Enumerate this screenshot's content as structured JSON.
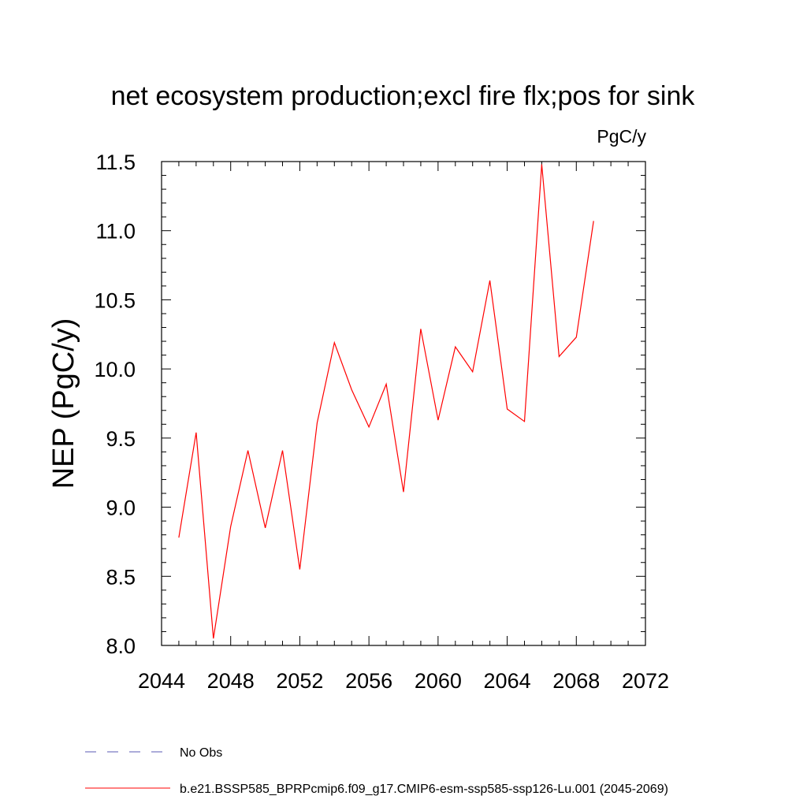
{
  "chart_data": {
    "type": "line",
    "title": "net ecosystem production;excl fire flx;pos for sink",
    "units": "PgC/y",
    "ylabel": "NEP  (PgC/y)",
    "xlabel": "",
    "xlim": [
      2044,
      2072
    ],
    "ylim": [
      8.0,
      11.5
    ],
    "x_ticks": [
      "2044",
      "2048",
      "2052",
      "2056",
      "2060",
      "2064",
      "2068",
      "2072"
    ],
    "y_ticks": [
      "8.0",
      "8.5",
      "9.0",
      "9.5",
      "10.0",
      "10.5",
      "11.0",
      "11.5"
    ],
    "grid": false,
    "series": [
      {
        "name": "b.e21.BSSP585_BPRPcmip6.f09_g17.CMIP6-esm-ssp585-ssp126-Lu.001 (2045-2069)",
        "color": "#ff0000",
        "x": [
          2045,
          2046,
          2047,
          2048,
          2049,
          2050,
          2051,
          2052,
          2053,
          2054,
          2055,
          2056,
          2057,
          2058,
          2059,
          2060,
          2061,
          2062,
          2063,
          2064,
          2065,
          2066,
          2067,
          2068,
          2069
        ],
        "values": [
          8.78,
          9.54,
          8.05,
          8.86,
          9.41,
          8.85,
          9.41,
          8.55,
          9.61,
          10.19,
          9.85,
          9.58,
          9.89,
          9.11,
          10.29,
          9.63,
          10.16,
          9.98,
          10.64,
          9.71,
          9.62,
          11.48,
          10.09,
          10.23,
          11.07
        ]
      }
    ],
    "legend": [
      {
        "label": "No Obs",
        "color": "#5a5ab4",
        "style": "dashed"
      },
      {
        "label": "b.e21.BSSP585_BPRPcmip6.f09_g17.CMIP6-esm-ssp585-ssp126-Lu.001 (2045-2069)",
        "color": "#ff0000",
        "style": "solid"
      }
    ]
  }
}
